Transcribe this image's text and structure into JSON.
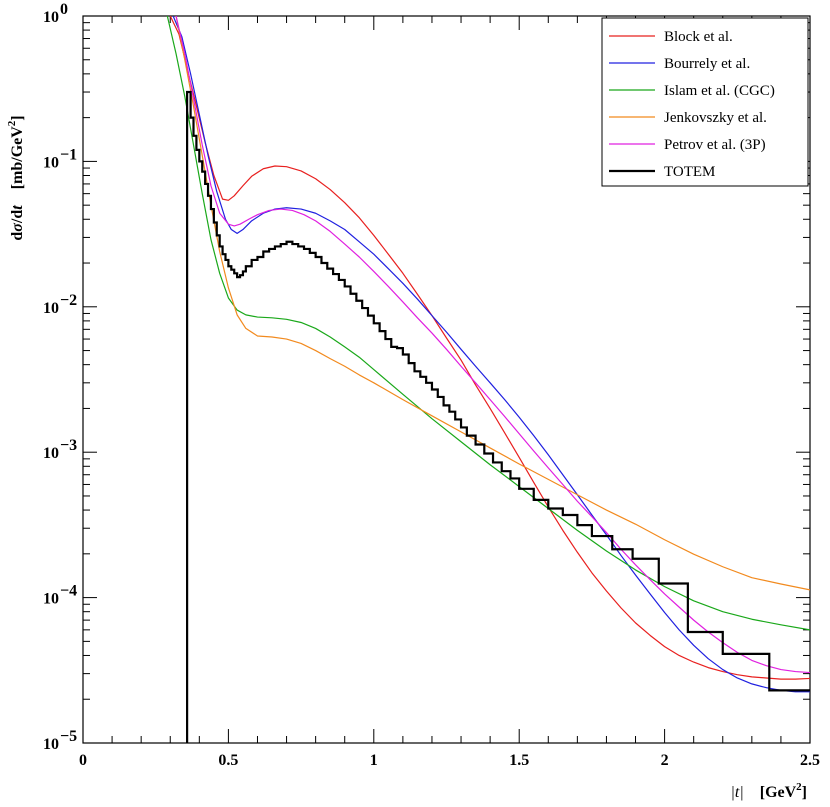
{
  "chart_data": {
    "type": "line",
    "title": "",
    "xlabel": "|t|   [GeV²]",
    "ylabel": "dσ/dt   [mb/GeV²]",
    "xlim": [
      0,
      2.5
    ],
    "ylim": [
      1e-05,
      1
    ],
    "yscale": "log",
    "legend_position": "top-right",
    "x_ticks": [
      {
        "value": 0,
        "label": "0"
      },
      {
        "value": 0.5,
        "label": "0.5"
      },
      {
        "value": 1,
        "label": "1"
      },
      {
        "value": 1.5,
        "label": "1.5"
      },
      {
        "value": 2,
        "label": "2"
      },
      {
        "value": 2.5,
        "label": "2.5"
      }
    ],
    "y_ticks": [
      {
        "value": 1,
        "base": "10",
        "exp": "0"
      },
      {
        "value": 0.1,
        "base": "10",
        "exp": "−1"
      },
      {
        "value": 0.01,
        "base": "10",
        "exp": "−2"
      },
      {
        "value": 0.001,
        "base": "10",
        "exp": "−3"
      },
      {
        "value": 0.0001,
        "base": "10",
        "exp": "−4"
      },
      {
        "value": 1e-05,
        "base": "10",
        "exp": "−5"
      }
    ],
    "series": [
      {
        "name": "Block et al.",
        "color": "#e8201f",
        "style": "line",
        "x": [
          0.3,
          0.33,
          0.36,
          0.39,
          0.42,
          0.45,
          0.48,
          0.5,
          0.52,
          0.55,
          0.58,
          0.62,
          0.66,
          0.7,
          0.75,
          0.8,
          0.85,
          0.9,
          0.95,
          1.0,
          1.05,
          1.1,
          1.15,
          1.2,
          1.25,
          1.3,
          1.35,
          1.4,
          1.45,
          1.5,
          1.55,
          1.6,
          1.65,
          1.7,
          1.75,
          1.8,
          1.85,
          1.9,
          1.95,
          2.0,
          2.05,
          2.1,
          2.15,
          2.2,
          2.25,
          2.3,
          2.35,
          2.4,
          2.45,
          2.5
        ],
        "y": [
          1.0,
          0.75,
          0.42,
          0.24,
          0.135,
          0.08,
          0.055,
          0.054,
          0.058,
          0.068,
          0.079,
          0.089,
          0.093,
          0.092,
          0.086,
          0.076,
          0.064,
          0.052,
          0.041,
          0.031,
          0.023,
          0.017,
          0.0122,
          0.0087,
          0.0061,
          0.0043,
          0.0029,
          0.002,
          0.00136,
          0.00092,
          0.00062,
          0.00042,
          0.00029,
          0.000205,
          0.000148,
          0.000111,
          8.5e-05,
          6.7e-05,
          5.5e-05,
          4.6e-05,
          4e-05,
          3.6e-05,
          3.3e-05,
          3.1e-05,
          2.95e-05,
          2.85e-05,
          2.8e-05,
          2.75e-05,
          2.75e-05,
          2.78e-05
        ]
      },
      {
        "name": "Bourrely et al.",
        "color": "#2020e0",
        "style": "line",
        "x": [
          0.31,
          0.34,
          0.37,
          0.4,
          0.43,
          0.46,
          0.49,
          0.51,
          0.53,
          0.55,
          0.58,
          0.62,
          0.66,
          0.7,
          0.75,
          0.8,
          0.85,
          0.9,
          0.95,
          1.0,
          1.05,
          1.1,
          1.15,
          1.2,
          1.25,
          1.3,
          1.35,
          1.4,
          1.45,
          1.5,
          1.55,
          1.6,
          1.65,
          1.7,
          1.75,
          1.8,
          1.85,
          1.9,
          1.95,
          2.0,
          2.05,
          2.1,
          2.15,
          2.2,
          2.25,
          2.3,
          2.35,
          2.4,
          2.45,
          2.5
        ],
        "y": [
          1.0,
          0.72,
          0.4,
          0.21,
          0.11,
          0.062,
          0.04,
          0.034,
          0.032,
          0.034,
          0.039,
          0.044,
          0.047,
          0.048,
          0.047,
          0.044,
          0.039,
          0.034,
          0.028,
          0.023,
          0.0183,
          0.0145,
          0.0113,
          0.0087,
          0.0067,
          0.0051,
          0.0039,
          0.003,
          0.0023,
          0.00174,
          0.0013,
          0.00096,
          0.0007,
          0.00051,
          0.00037,
          0.00027,
          0.000195,
          0.000143,
          0.000106,
          7.9e-05,
          6e-05,
          4.7e-05,
          3.8e-05,
          3.2e-05,
          2.8e-05,
          2.55e-05,
          2.4e-05,
          2.3e-05,
          2.25e-05,
          2.25e-05
        ]
      },
      {
        "name": "Islam et al. (CGC)",
        "color": "#1aa81a",
        "style": "line",
        "x": [
          0.29,
          0.32,
          0.35,
          0.38,
          0.41,
          0.44,
          0.47,
          0.5,
          0.53,
          0.56,
          0.6,
          0.65,
          0.7,
          0.75,
          0.8,
          0.85,
          0.9,
          0.95,
          1.0,
          1.1,
          1.2,
          1.3,
          1.4,
          1.5,
          1.6,
          1.7,
          1.8,
          1.9,
          2.0,
          2.1,
          2.2,
          2.3,
          2.4,
          2.5
        ],
        "y": [
          1.0,
          0.55,
          0.28,
          0.13,
          0.06,
          0.029,
          0.017,
          0.0115,
          0.0095,
          0.0088,
          0.0085,
          0.0084,
          0.0082,
          0.0078,
          0.0071,
          0.0062,
          0.0053,
          0.0045,
          0.0037,
          0.0025,
          0.0017,
          0.00118,
          0.00082,
          0.00058,
          0.00041,
          0.00029,
          0.000209,
          0.000155,
          0.000119,
          9.5e-05,
          8e-05,
          7.1e-05,
          6.5e-05,
          6e-05
        ]
      },
      {
        "name": "Jenkovszky et al.",
        "color": "#f28a1e",
        "style": "line",
        "x": [
          0.32,
          0.35,
          0.38,
          0.41,
          0.44,
          0.47,
          0.5,
          0.53,
          0.56,
          0.6,
          0.65,
          0.7,
          0.75,
          0.8,
          0.85,
          0.9,
          0.95,
          1.0,
          1.1,
          1.2,
          1.3,
          1.4,
          1.5,
          1.6,
          1.7,
          1.8,
          1.9,
          2.0,
          2.1,
          2.2,
          2.3,
          2.4,
          2.5
        ],
        "y": [
          1.0,
          0.5,
          0.24,
          0.11,
          0.05,
          0.024,
          0.0135,
          0.0088,
          0.0071,
          0.0063,
          0.0062,
          0.006,
          0.0056,
          0.005,
          0.0044,
          0.0039,
          0.0034,
          0.003,
          0.0023,
          0.00178,
          0.00138,
          0.00107,
          0.00083,
          0.00065,
          0.00051,
          0.0004,
          0.00032,
          0.00025,
          0.000199,
          0.000163,
          0.000137,
          0.000124,
          0.000113
        ]
      },
      {
        "name": "Petrov et al. (3P)",
        "color": "#e020e0",
        "style": "line",
        "x": [
          0.32,
          0.35,
          0.38,
          0.41,
          0.44,
          0.47,
          0.5,
          0.52,
          0.54,
          0.57,
          0.6,
          0.64,
          0.68,
          0.72,
          0.76,
          0.8,
          0.85,
          0.9,
          0.95,
          1.0,
          1.05,
          1.1,
          1.15,
          1.2,
          1.25,
          1.3,
          1.35,
          1.4,
          1.45,
          1.5,
          1.55,
          1.6,
          1.65,
          1.7,
          1.75,
          1.8,
          1.85,
          1.9,
          1.95,
          2.0,
          2.05,
          2.1,
          2.15,
          2.2,
          2.25,
          2.3,
          2.35,
          2.4,
          2.45,
          2.5
        ],
        "y": [
          1.0,
          0.55,
          0.27,
          0.13,
          0.068,
          0.044,
          0.037,
          0.036,
          0.037,
          0.04,
          0.043,
          0.046,
          0.047,
          0.046,
          0.043,
          0.039,
          0.033,
          0.027,
          0.022,
          0.0175,
          0.0138,
          0.0108,
          0.0084,
          0.0066,
          0.0051,
          0.0039,
          0.003,
          0.0023,
          0.00176,
          0.00134,
          0.00102,
          0.00078,
          0.0006,
          0.00046,
          0.00036,
          0.00028,
          0.000215,
          0.000168,
          0.000133,
          0.000106,
          8.6e-05,
          7e-05,
          5.8e-05,
          4.9e-05,
          4.2e-05,
          3.7e-05,
          3.4e-05,
          3.2e-05,
          3.1e-05,
          3.05e-05
        ]
      },
      {
        "name": "TOTEM",
        "color": "#000000",
        "style": "step",
        "edges": [
          0.358,
          0.37,
          0.38,
          0.39,
          0.4,
          0.41,
          0.42,
          0.43,
          0.44,
          0.45,
          0.46,
          0.47,
          0.48,
          0.49,
          0.5,
          0.51,
          0.52,
          0.53,
          0.54,
          0.55,
          0.56,
          0.58,
          0.6,
          0.62,
          0.64,
          0.66,
          0.68,
          0.7,
          0.72,
          0.74,
          0.76,
          0.78,
          0.8,
          0.82,
          0.84,
          0.86,
          0.88,
          0.9,
          0.92,
          0.94,
          0.96,
          0.98,
          1.0,
          1.02,
          1.04,
          1.06,
          1.08,
          1.1,
          1.12,
          1.14,
          1.16,
          1.18,
          1.2,
          1.22,
          1.24,
          1.26,
          1.28,
          1.3,
          1.32,
          1.35,
          1.38,
          1.41,
          1.44,
          1.47,
          1.5,
          1.55,
          1.6,
          1.65,
          1.7,
          1.75,
          1.82,
          1.89,
          1.98,
          2.08,
          2.2,
          2.36,
          2.5
        ],
        "values": [
          0.3,
          0.2,
          0.15,
          0.12,
          0.1,
          0.085,
          0.07,
          0.058,
          0.047,
          0.038,
          0.031,
          0.026,
          0.023,
          0.021,
          0.019,
          0.018,
          0.017,
          0.016,
          0.0165,
          0.0175,
          0.019,
          0.021,
          0.022,
          0.024,
          0.025,
          0.026,
          0.027,
          0.028,
          0.027,
          0.026,
          0.025,
          0.0235,
          0.022,
          0.02,
          0.0183,
          0.0168,
          0.0153,
          0.0138,
          0.0123,
          0.011,
          0.0098,
          0.0087,
          0.0077,
          0.0068,
          0.006,
          0.0053,
          0.0052,
          0.0047,
          0.0041,
          0.0036,
          0.0033,
          0.003,
          0.0027,
          0.0024,
          0.0021,
          0.0019,
          0.00168,
          0.00148,
          0.0013,
          0.00113,
          0.00098,
          0.00085,
          0.00074,
          0.00066,
          0.00056,
          0.00047,
          0.00041,
          0.00037,
          0.000315,
          0.000265,
          0.000215,
          0.000185,
          0.000125,
          5.8e-05,
          4.1e-05,
          2.3e-05
        ],
        "start_y": 1e-05,
        "end_y": 2.3e-05
      }
    ]
  }
}
